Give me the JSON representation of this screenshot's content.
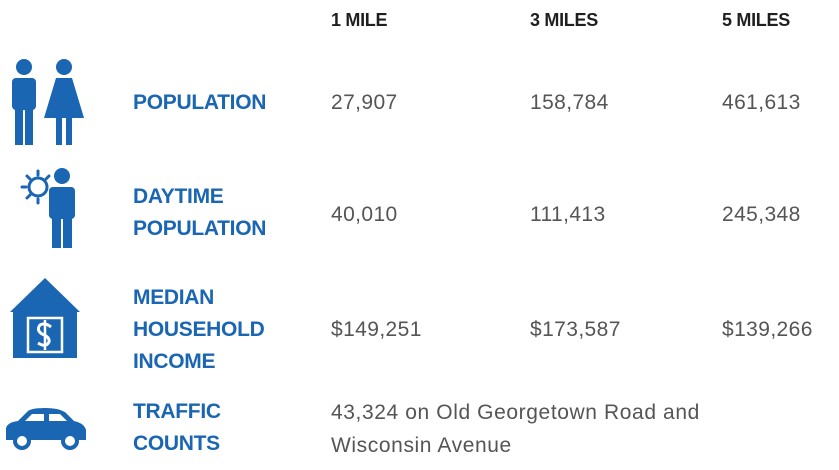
{
  "table": {
    "columns": [
      "1 MILE",
      "3 MILES",
      "5 MILES"
    ],
    "rows": [
      {
        "label": [
          "POPULATION"
        ],
        "values": [
          "27,907",
          "158,784",
          "461,613"
        ]
      },
      {
        "label": [
          "DAYTIME",
          "POPULATION"
        ],
        "values": [
          "40,010",
          "111,413",
          "245,348"
        ]
      },
      {
        "label": [
          "MEDIAN",
          "HOUSEHOLD",
          "INCOME"
        ],
        "values": [
          "$149,251",
          "$173,587",
          "$139,266"
        ]
      },
      {
        "label": [
          "TRAFFIC",
          "COUNTS"
        ],
        "note": [
          "43,324 on Old Georgetown Road and",
          "Wisconsin Avenue"
        ]
      }
    ]
  }
}
